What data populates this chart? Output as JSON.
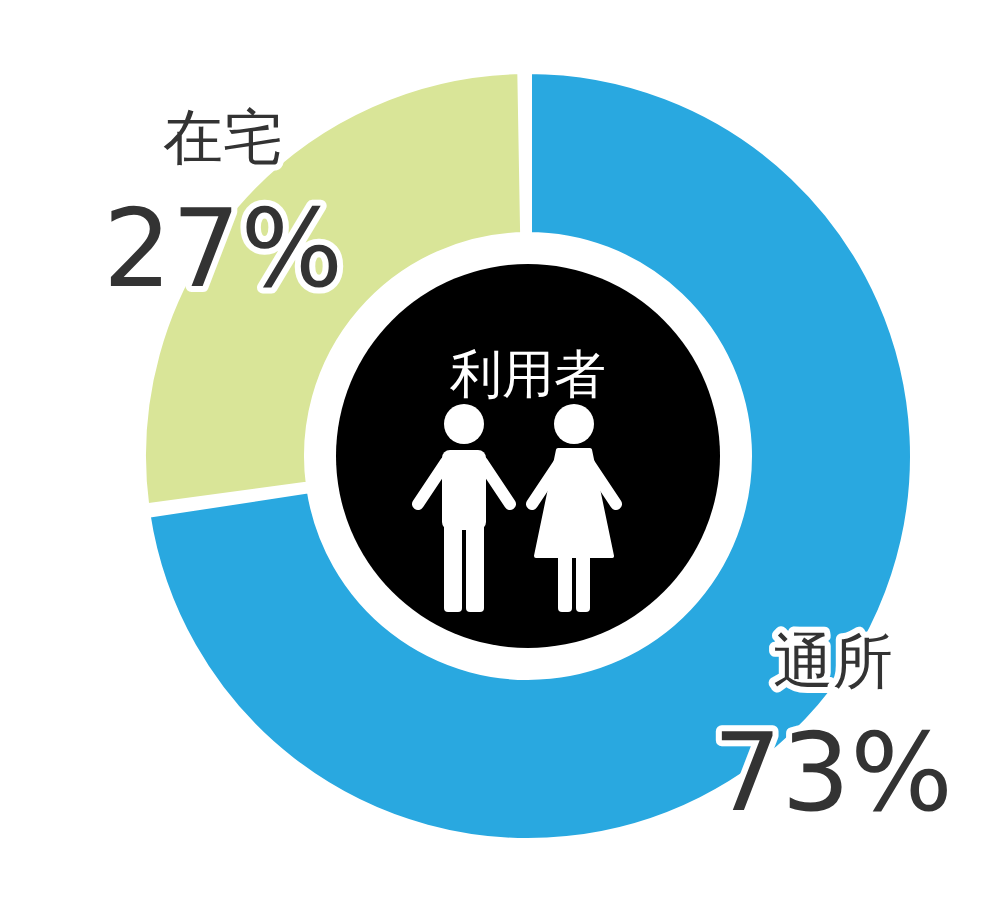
{
  "chart_data": {
    "type": "donut",
    "title": "利用者",
    "categories": [
      "通所",
      "在宅"
    ],
    "values": [
      73,
      27
    ],
    "colors": [
      "#29a8e0",
      "#d9e598"
    ],
    "value_labels": [
      "73%",
      "27%"
    ]
  }
}
